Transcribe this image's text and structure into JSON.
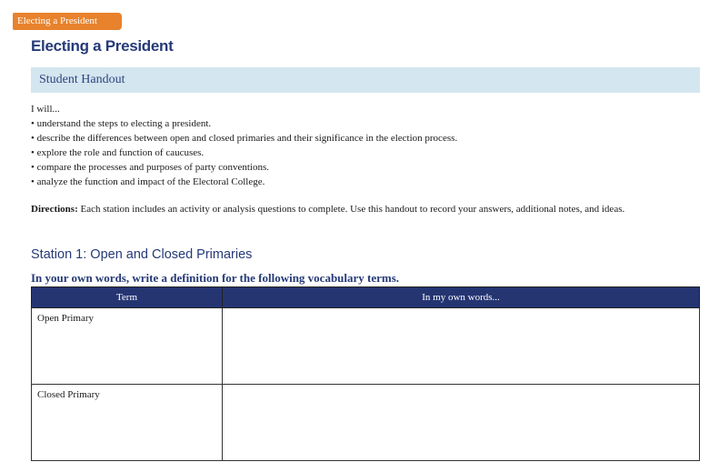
{
  "tag": "Electing a President",
  "title": "Electing a President",
  "band": "Student Handout",
  "intro": "I will...",
  "goals": [
    "understand the steps to electing a president.",
    "describe the differences between open and closed primaries and their significance in the election process.",
    "explore the role and function of caucuses.",
    "compare the processes and purposes of party conventions.",
    "analyze the function and impact of the Electoral College."
  ],
  "directions": {
    "label": "Directions:",
    "text": " Each station includes an activity or analysis questions to complete. Use this handout to record your answers, additional notes, and ideas."
  },
  "station": "Station 1: Open and Closed Primaries",
  "instruction": "In your own words, write a definition for the following vocabulary terms.",
  "table": {
    "headers": [
      "Term",
      "In my own words..."
    ],
    "rows": [
      {
        "term": "Open Primary",
        "answer": ""
      },
      {
        "term": "Closed Primary",
        "answer": ""
      }
    ]
  },
  "colors": {
    "accent": "#e8822c",
    "navy": "#253a78",
    "band": "#d4e6ef"
  }
}
